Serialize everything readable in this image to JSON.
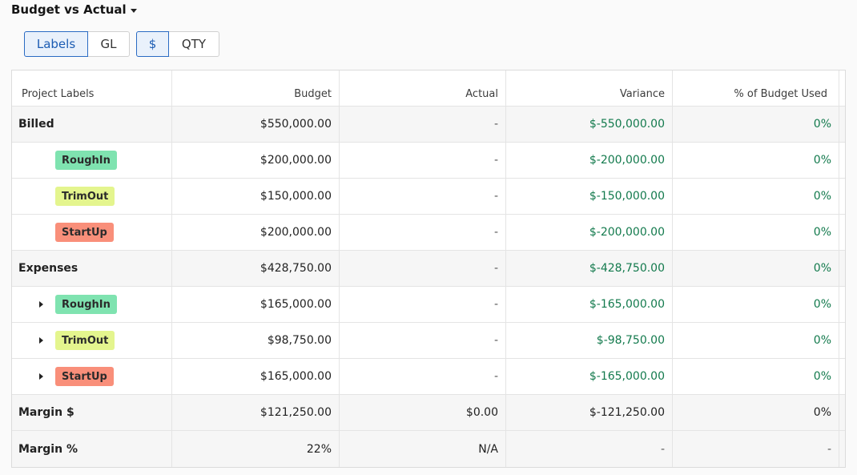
{
  "header": {
    "title": "Budget vs Actual"
  },
  "toggles": {
    "view": [
      {
        "label": "Labels",
        "active": true
      },
      {
        "label": "GL",
        "active": false
      }
    ],
    "unit": [
      {
        "label": "$",
        "active": true
      },
      {
        "label": "QTY",
        "active": false
      }
    ]
  },
  "colors": {
    "accent": "#2a6bc3",
    "positive": "#137a4d",
    "roughin": "#7fe3b0",
    "trimout": "#e4f58e",
    "startup": "#f98f7a"
  },
  "table": {
    "columns": [
      "Project Labels",
      "Budget",
      "Actual",
      "Variance",
      "% of Budget Used"
    ],
    "rows": [
      {
        "label": "Billed",
        "budget": "$550,000.00",
        "actual": "-",
        "variance": "$-550,000.00",
        "pct": "0%"
      },
      {
        "label": "RoughIn",
        "budget": "$200,000.00",
        "actual": "-",
        "variance": "$-200,000.00",
        "pct": "0%"
      },
      {
        "label": "TrimOut",
        "budget": "$150,000.00",
        "actual": "-",
        "variance": "$-150,000.00",
        "pct": "0%"
      },
      {
        "label": "StartUp",
        "budget": "$200,000.00",
        "actual": "-",
        "variance": "$-200,000.00",
        "pct": "0%"
      },
      {
        "label": "Expenses",
        "budget": "$428,750.00",
        "actual": "-",
        "variance": "$-428,750.00",
        "pct": "0%"
      },
      {
        "label": "RoughIn",
        "budget": "$165,000.00",
        "actual": "-",
        "variance": "$-165,000.00",
        "pct": "0%"
      },
      {
        "label": "TrimOut",
        "budget": "$98,750.00",
        "actual": "-",
        "variance": "$-98,750.00",
        "pct": "0%"
      },
      {
        "label": "StartUp",
        "budget": "$165,000.00",
        "actual": "-",
        "variance": "$-165,000.00",
        "pct": "0%"
      },
      {
        "label": "Margin $",
        "budget": "$121,250.00",
        "actual": "$0.00",
        "variance": "$-121,250.00",
        "pct": "0%"
      },
      {
        "label": "Margin %",
        "budget": "22%",
        "actual": "N/A",
        "variance": "-",
        "pct": "-"
      }
    ]
  }
}
